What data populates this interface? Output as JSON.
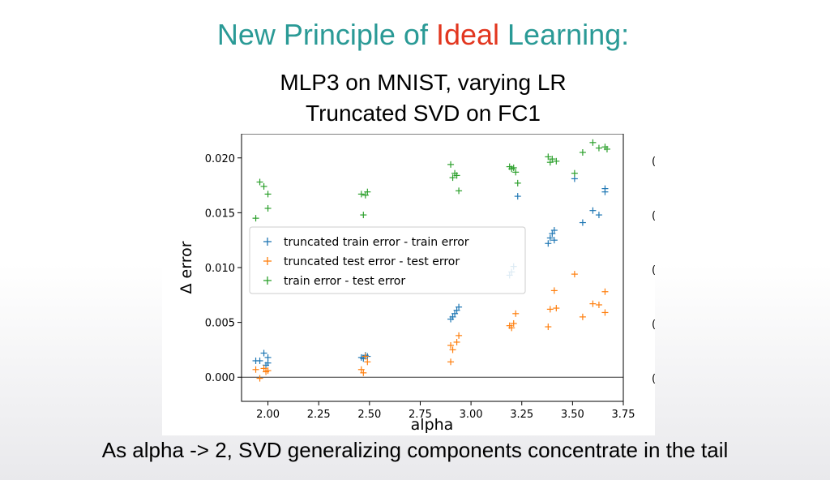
{
  "slide": {
    "title_part1": "New Principle of ",
    "title_highlight": "Ideal",
    "title_part2": " Learning:",
    "title_color": "#2a9a96",
    "highlight_color": "#e2361f",
    "subtitle_line1": "MLP3 on MNIST, varying LR",
    "subtitle_line2": "Truncated SVD on FC1",
    "caption": "As alpha -> 2,  SVD generalizing components concentrate in the tail",
    "edge_marks": [
      "(",
      "(",
      "(",
      "(",
      "("
    ]
  },
  "chart_data": {
    "type": "scatter",
    "marker": "plus",
    "xlabel": "alpha",
    "ylabel": "Δ error",
    "xlim": [
      1.87,
      3.75
    ],
    "ylim": [
      -0.0022,
      0.0222
    ],
    "xticks": [
      2.0,
      2.25,
      2.5,
      2.75,
      3.0,
      3.25,
      3.5,
      3.75
    ],
    "xtick_labels": [
      "2.00",
      "2.25",
      "2.50",
      "2.75",
      "3.00",
      "3.25",
      "3.50",
      "3.75"
    ],
    "yticks": [
      0.0,
      0.005,
      0.01,
      0.015,
      0.02
    ],
    "ytick_labels": [
      "0.000",
      "0.005",
      "0.010",
      "0.015",
      "0.020"
    ],
    "hline_y": 0.0,
    "grid": false,
    "legend_position": "center-left",
    "series": [
      {
        "name": "truncated train error - train error",
        "color": "#1f77b4",
        "points": [
          [
            1.94,
            0.0015
          ],
          [
            1.96,
            0.0015
          ],
          [
            1.98,
            0.0022
          ],
          [
            1.99,
            0.0011
          ],
          [
            2.0,
            0.0018
          ],
          [
            2.0,
            0.0013
          ],
          [
            2.46,
            0.0018
          ],
          [
            2.47,
            0.0017
          ],
          [
            2.48,
            0.002
          ],
          [
            2.49,
            0.0019
          ],
          [
            2.9,
            0.0053
          ],
          [
            2.91,
            0.0055
          ],
          [
            2.92,
            0.0058
          ],
          [
            2.93,
            0.0061
          ],
          [
            2.94,
            0.0064
          ],
          [
            3.19,
            0.0093
          ],
          [
            3.2,
            0.0096
          ],
          [
            3.21,
            0.0101
          ],
          [
            3.23,
            0.0165
          ],
          [
            3.38,
            0.0122
          ],
          [
            3.39,
            0.0127
          ],
          [
            3.4,
            0.0131
          ],
          [
            3.41,
            0.0125
          ],
          [
            3.41,
            0.0134
          ],
          [
            3.51,
            0.0181
          ],
          [
            3.55,
            0.0141
          ],
          [
            3.6,
            0.0152
          ],
          [
            3.63,
            0.0148
          ],
          [
            3.66,
            0.0172
          ],
          [
            3.66,
            0.0169
          ]
        ]
      },
      {
        "name": "truncated test error - test error",
        "color": "#ff7f0e",
        "points": [
          [
            1.94,
            0.0007
          ],
          [
            1.96,
            -0.0001
          ],
          [
            1.98,
            0.0008
          ],
          [
            1.99,
            0.0005
          ],
          [
            2.0,
            0.0006
          ],
          [
            2.46,
            0.0007
          ],
          [
            2.47,
            0.0004
          ],
          [
            2.48,
            0.0019
          ],
          [
            2.49,
            0.0014
          ],
          [
            2.9,
            0.0014
          ],
          [
            2.9,
            0.0029
          ],
          [
            2.91,
            0.0025
          ],
          [
            2.93,
            0.0032
          ],
          [
            2.94,
            0.0038
          ],
          [
            3.19,
            0.0047
          ],
          [
            3.2,
            0.0045
          ],
          [
            3.21,
            0.0049
          ],
          [
            3.22,
            0.0058
          ],
          [
            3.38,
            0.0046
          ],
          [
            3.39,
            0.0062
          ],
          [
            3.41,
            0.0079
          ],
          [
            3.42,
            0.0063
          ],
          [
            3.51,
            0.0094
          ],
          [
            3.55,
            0.0055
          ],
          [
            3.6,
            0.0067
          ],
          [
            3.63,
            0.0066
          ],
          [
            3.66,
            0.0059
          ],
          [
            3.66,
            0.0078
          ]
        ]
      },
      {
        "name": "train error - test error",
        "color": "#2ca02c",
        "points": [
          [
            1.94,
            0.0145
          ],
          [
            1.96,
            0.0178
          ],
          [
            1.98,
            0.0174
          ],
          [
            2.0,
            0.0167
          ],
          [
            2.0,
            0.0154
          ],
          [
            2.46,
            0.0167
          ],
          [
            2.47,
            0.0148
          ],
          [
            2.48,
            0.0166
          ],
          [
            2.49,
            0.0169
          ],
          [
            2.9,
            0.0194
          ],
          [
            2.91,
            0.0182
          ],
          [
            2.92,
            0.0186
          ],
          [
            2.93,
            0.0184
          ],
          [
            2.94,
            0.017
          ],
          [
            3.19,
            0.0192
          ],
          [
            3.2,
            0.019
          ],
          [
            3.21,
            0.0191
          ],
          [
            3.23,
            0.0177
          ],
          [
            3.22,
            0.0187
          ],
          [
            3.38,
            0.0201
          ],
          [
            3.39,
            0.0196
          ],
          [
            3.4,
            0.0199
          ],
          [
            3.42,
            0.0197
          ],
          [
            3.51,
            0.0186
          ],
          [
            3.55,
            0.0205
          ],
          [
            3.6,
            0.0214
          ],
          [
            3.63,
            0.0209
          ],
          [
            3.66,
            0.021
          ],
          [
            3.67,
            0.0208
          ]
        ]
      }
    ]
  }
}
